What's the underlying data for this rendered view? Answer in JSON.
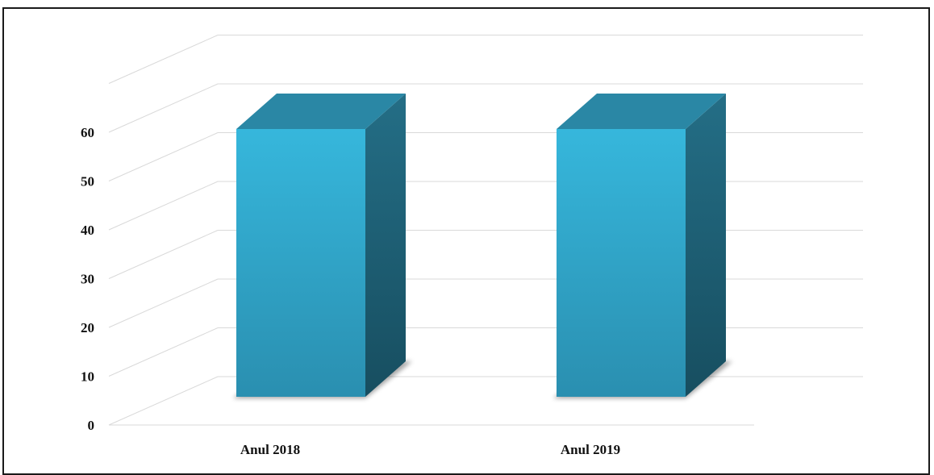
{
  "chart_data": {
    "type": "bar",
    "categories": [
      "Anul 2018",
      "Anul 2019"
    ],
    "values": [
      54,
      54
    ],
    "ylim": [
      0,
      60
    ],
    "yticks": [
      0,
      10,
      20,
      30,
      40,
      50,
      60
    ],
    "grid": true,
    "legend": "none",
    "style": "3d-column",
    "colors": {
      "front_top": "#36b7dc",
      "front_bottom": "#2a8fb0",
      "side_top": "#246e86",
      "side_bottom": "#174e60",
      "top_face": "#2a87a5",
      "grid": "#d9d9d9",
      "frame": "#1a1a1a"
    }
  }
}
